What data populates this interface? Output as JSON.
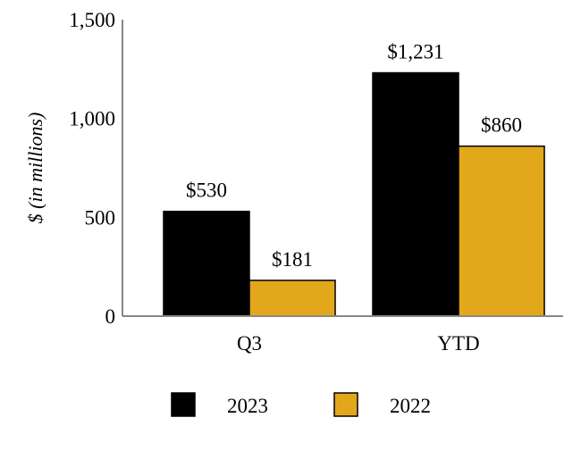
{
  "chart_data": {
    "type": "bar",
    "title": "",
    "xlabel": "",
    "ylabel": "$ (in millions)",
    "ylim": [
      0,
      1500
    ],
    "yticks": [
      0,
      500,
      1000,
      1500
    ],
    "ytick_labels": [
      "0",
      "500",
      "1,000",
      "1,500"
    ],
    "categories": [
      "Q3",
      "YTD"
    ],
    "series": [
      {
        "name": "2023",
        "values": [
          530,
          1231
        ],
        "labels": [
          "$530",
          "$1,231"
        ],
        "color": "#000000"
      },
      {
        "name": "2022",
        "values": [
          181,
          860
        ],
        "labels": [
          "$181",
          "$860"
        ],
        "color": "#E3A71B"
      }
    ],
    "legend_position": "bottom-center",
    "grid": false
  }
}
